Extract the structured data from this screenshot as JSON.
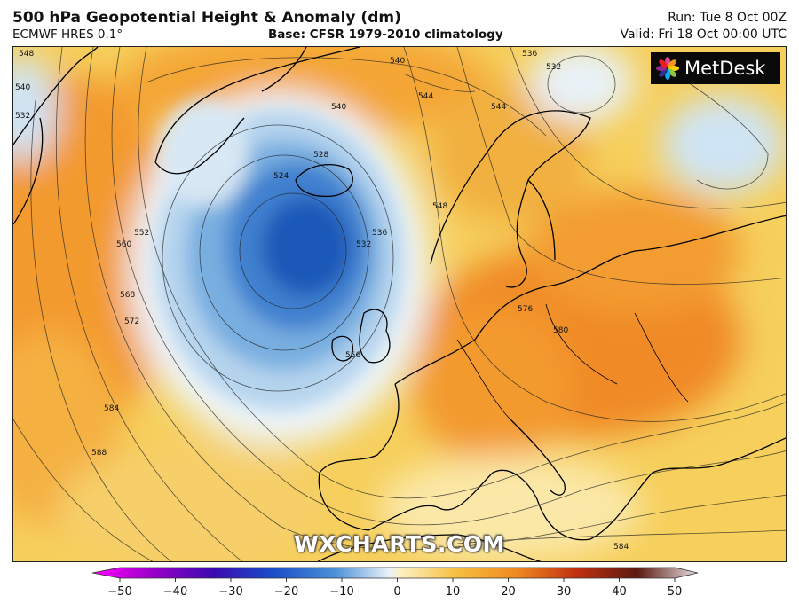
{
  "header": {
    "title": "500 hPa Geopotential Height & Anomaly (dm)",
    "model": "ECMWF HRES 0.1°",
    "base": "Base: CFSR 1979-2010 climatology",
    "run": "Run: Tue 8 Oct 00Z",
    "valid": "Valid: Fri 18 Oct 00:00 UTC"
  },
  "logo": {
    "text": "MetDesk"
  },
  "watermark": "WXCHARTS.COM",
  "contour_labels": [
    "548",
    "540",
    "532",
    "540",
    "544",
    "536",
    "532",
    "540",
    "544",
    "528",
    "524",
    "532",
    "536",
    "548",
    "552",
    "560",
    "568",
    "572",
    "576",
    "580",
    "556",
    "584",
    "588",
    "584"
  ],
  "colorbar": {
    "ticks": [
      "−50",
      "−40",
      "−30",
      "−20",
      "−10",
      "0",
      "10",
      "20",
      "30",
      "40",
      "50"
    ],
    "colors": [
      "#ff00ff",
      "#9a00c8",
      "#3a0ab0",
      "#1a4fc8",
      "#4a90d8",
      "#cce4f4",
      "#fbe6a0",
      "#f6c040",
      "#f08a20",
      "#c03010",
      "#5a1a10",
      "#e8e0e0"
    ]
  }
}
